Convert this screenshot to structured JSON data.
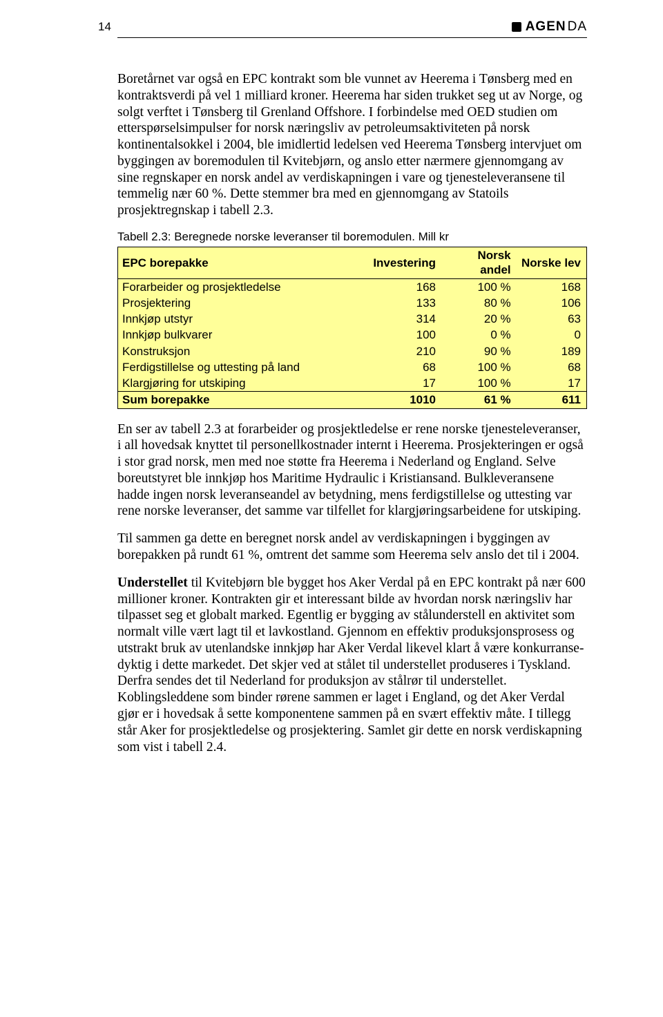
{
  "header": {
    "page_number": "14",
    "brand_bold": "AGEN",
    "brand_light": "DA"
  },
  "para1": "Boretårnet var også en EPC kontrakt som ble vunnet av Heerema i Tønsberg med en kontraktsverdi på vel 1 milliard kroner. Heerema har siden trukket seg ut av Norge, og solgt verftet i Tønsberg til Grenland Offshore. I forbindelse med OED studien om etterspørselsimpulser for norsk næringsliv av petroleumsaktiviteten på norsk kontinentalsokkel i 2004, ble imidlertid ledelsen ved Heerema Tønsberg intervjuet om byggingen av boremodulen til Kvitebjørn, og anslo etter nærmere gjennomgang av sine regnskaper en norsk andel av verdiskapningen i vare og tjenesteleveransene til temmelig nær 60 %. Dette stemmer bra med en gjennomgang av Statoils prosjektregnskap i tabell 2.3.",
  "table_caption": "Tabell 2.3: Beregnede norske leveranser til boremodulen. Mill kr",
  "table": {
    "headers": [
      "EPC borepakke",
      "Investering",
      "Norsk andel",
      "Norske lev"
    ],
    "rows": [
      {
        "name": "Forarbeider og  prosjektledelse",
        "inv": "168",
        "andel": "100 %",
        "lev": "168"
      },
      {
        "name": "Prosjektering",
        "inv": "133",
        "andel": "80 %",
        "lev": "106"
      },
      {
        "name": "Innkjøp utstyr",
        "inv": "314",
        "andel": "20 %",
        "lev": "63"
      },
      {
        "name": "Innkjøp bulkvarer",
        "inv": "100",
        "andel": "0 %",
        "lev": "0"
      },
      {
        "name": "Konstruksjon",
        "inv": "210",
        "andel": "90 %",
        "lev": "189"
      },
      {
        "name": "Ferdigstillelse og uttesting på land",
        "inv": "68",
        "andel": "100 %",
        "lev": "68"
      },
      {
        "name": "Klargjøring for utskiping",
        "inv": "17",
        "andel": "100 %",
        "lev": "17"
      }
    ],
    "sum": {
      "name": "Sum borepakke",
      "inv": "1010",
      "andel": "61 %",
      "lev": "611"
    }
  },
  "para2": "En ser av tabell 2.3 at forarbeider og prosjektledelse er rene norske tjenesteleveranser, i all hovedsak knyttet til personellkostnader internt i Heerema. Prosjekteringen er også i stor grad norsk, men med noe støtte fra Heerema i Nederland og England. Selve boreutstyret ble innkjøp hos Maritime Hydraulic i Kristiansand. Bulkleveransene hadde ingen norsk leveranseandel av betydning, mens ferdigstillelse og uttesting var rene norske leveranser, det samme var tilfellet for klargjøringsarbeidene for utskiping.",
  "para3": "Til sammen ga dette en beregnet norsk andel av verdiskapningen i byggingen av borepakken på rundt 61 %, omtrent det samme som Heerema selv anslo det til i 2004.",
  "para4_bold": "Understellet",
  "para4_rest": " til Kvitebjørn ble bygget hos Aker Verdal på en EPC kontrakt på nær 600 millioner kroner. Kontrakten gir et interessant bilde av hvordan norsk næringsliv har tilpasset seg et globalt marked. Egentlig er bygging av stålunderstell en aktivitet som normalt ville vært lagt til et lavkostland. Gjennom en effektiv produksjonsprosess og utstrakt bruk av utenlandske innkjøp har Aker Verdal likevel klart å være konkurranse­dyktig i dette markedet. Det skjer ved at stålet til understellet produseres i Tyskland. Derfra sendes det til Nederland for produksjon av stålrør til understellet. Koblingsleddene som binder rørene sammen er laget i England, og det Aker Verdal gjør er i hovedsak å sette komponentene sammen på en svært effektiv måte. I tillegg står Aker for prosjektledelse og prosjektering. Samlet gir dette en norsk verdiskapning som vist i tabell 2.4.",
  "colors": {
    "highlight_bg": "#ffff99",
    "page_bg": "#ffffff",
    "text": "#000000",
    "border": "#000000"
  }
}
